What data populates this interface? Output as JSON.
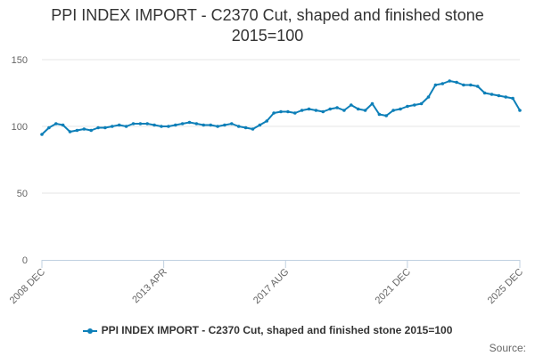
{
  "colors": {
    "series": "#0d7fb8",
    "grid": "#e6e6e6",
    "axis": "#c0d0e0",
    "text": "#666666",
    "title": "#333333"
  },
  "chart_data": {
    "type": "line",
    "title_lines": [
      "PPI INDEX IMPORT - C2370 Cut, shaped and finished stone",
      "2015=100"
    ],
    "xlabel": "",
    "ylabel": "",
    "ylim": [
      0,
      150
    ],
    "yticks": [
      0,
      50,
      100,
      150
    ],
    "xlim": [
      "2008 DEC",
      "2025 DEC"
    ],
    "xtick_labels": [
      "2008 DEC",
      "2013 APR",
      "2017 AUG",
      "2021 DEC",
      "2025 DEC"
    ],
    "grid": true,
    "legend_position": "bottom",
    "source_label": "Source:",
    "series": [
      {
        "name": "PPI INDEX IMPORT - C2370 Cut, shaped and finished stone 2015=100",
        "x": [
          "2008 DEC",
          "2009 MAR",
          "2009 JUN",
          "2009 SEP",
          "2009 DEC",
          "2010 MAR",
          "2010 JUN",
          "2010 SEP",
          "2010 DEC",
          "2011 MAR",
          "2011 JUN",
          "2011 SEP",
          "2011 DEC",
          "2012 MAR",
          "2012 JUN",
          "2012 SEP",
          "2012 DEC",
          "2013 MAR",
          "2013 JUN",
          "2013 SEP",
          "2013 DEC",
          "2014 MAR",
          "2014 JUN",
          "2014 SEP",
          "2014 DEC",
          "2015 MAR",
          "2015 JUN",
          "2015 SEP",
          "2015 DEC",
          "2016 MAR",
          "2016 JUN",
          "2016 SEP",
          "2016 DEC",
          "2017 MAR",
          "2017 JUN",
          "2017 SEP",
          "2017 DEC",
          "2018 MAR",
          "2018 JUN",
          "2018 SEP",
          "2018 DEC",
          "2019 MAR",
          "2019 JUN",
          "2019 SEP",
          "2019 DEC",
          "2020 MAR",
          "2020 JUN",
          "2020 SEP",
          "2020 DEC",
          "2021 MAR",
          "2021 JUN",
          "2021 SEP",
          "2021 DEC",
          "2022 MAR",
          "2022 JUN",
          "2022 SEP",
          "2022 DEC",
          "2023 MAR",
          "2023 JUN",
          "2023 SEP",
          "2023 DEC",
          "2024 MAR",
          "2024 JUN",
          "2024 SEP",
          "2024 DEC",
          "2025 MAR",
          "2025 JUN",
          "2025 SEP",
          "2025 DEC"
        ],
        "values": [
          94,
          99,
          102,
          101,
          96,
          97,
          98,
          97,
          99,
          99,
          100,
          101,
          100,
          102,
          102,
          102,
          101,
          100,
          100,
          101,
          102,
          103,
          102,
          101,
          101,
          100,
          101,
          102,
          100,
          99,
          98,
          101,
          104,
          110,
          111,
          111,
          110,
          112,
          113,
          112,
          111,
          113,
          114,
          112,
          116,
          113,
          112,
          117,
          109,
          108,
          112,
          113,
          115,
          116,
          117,
          122,
          131,
          132,
          134,
          133,
          131,
          131,
          130,
          125,
          124,
          123,
          122,
          121,
          112
        ]
      }
    ]
  }
}
